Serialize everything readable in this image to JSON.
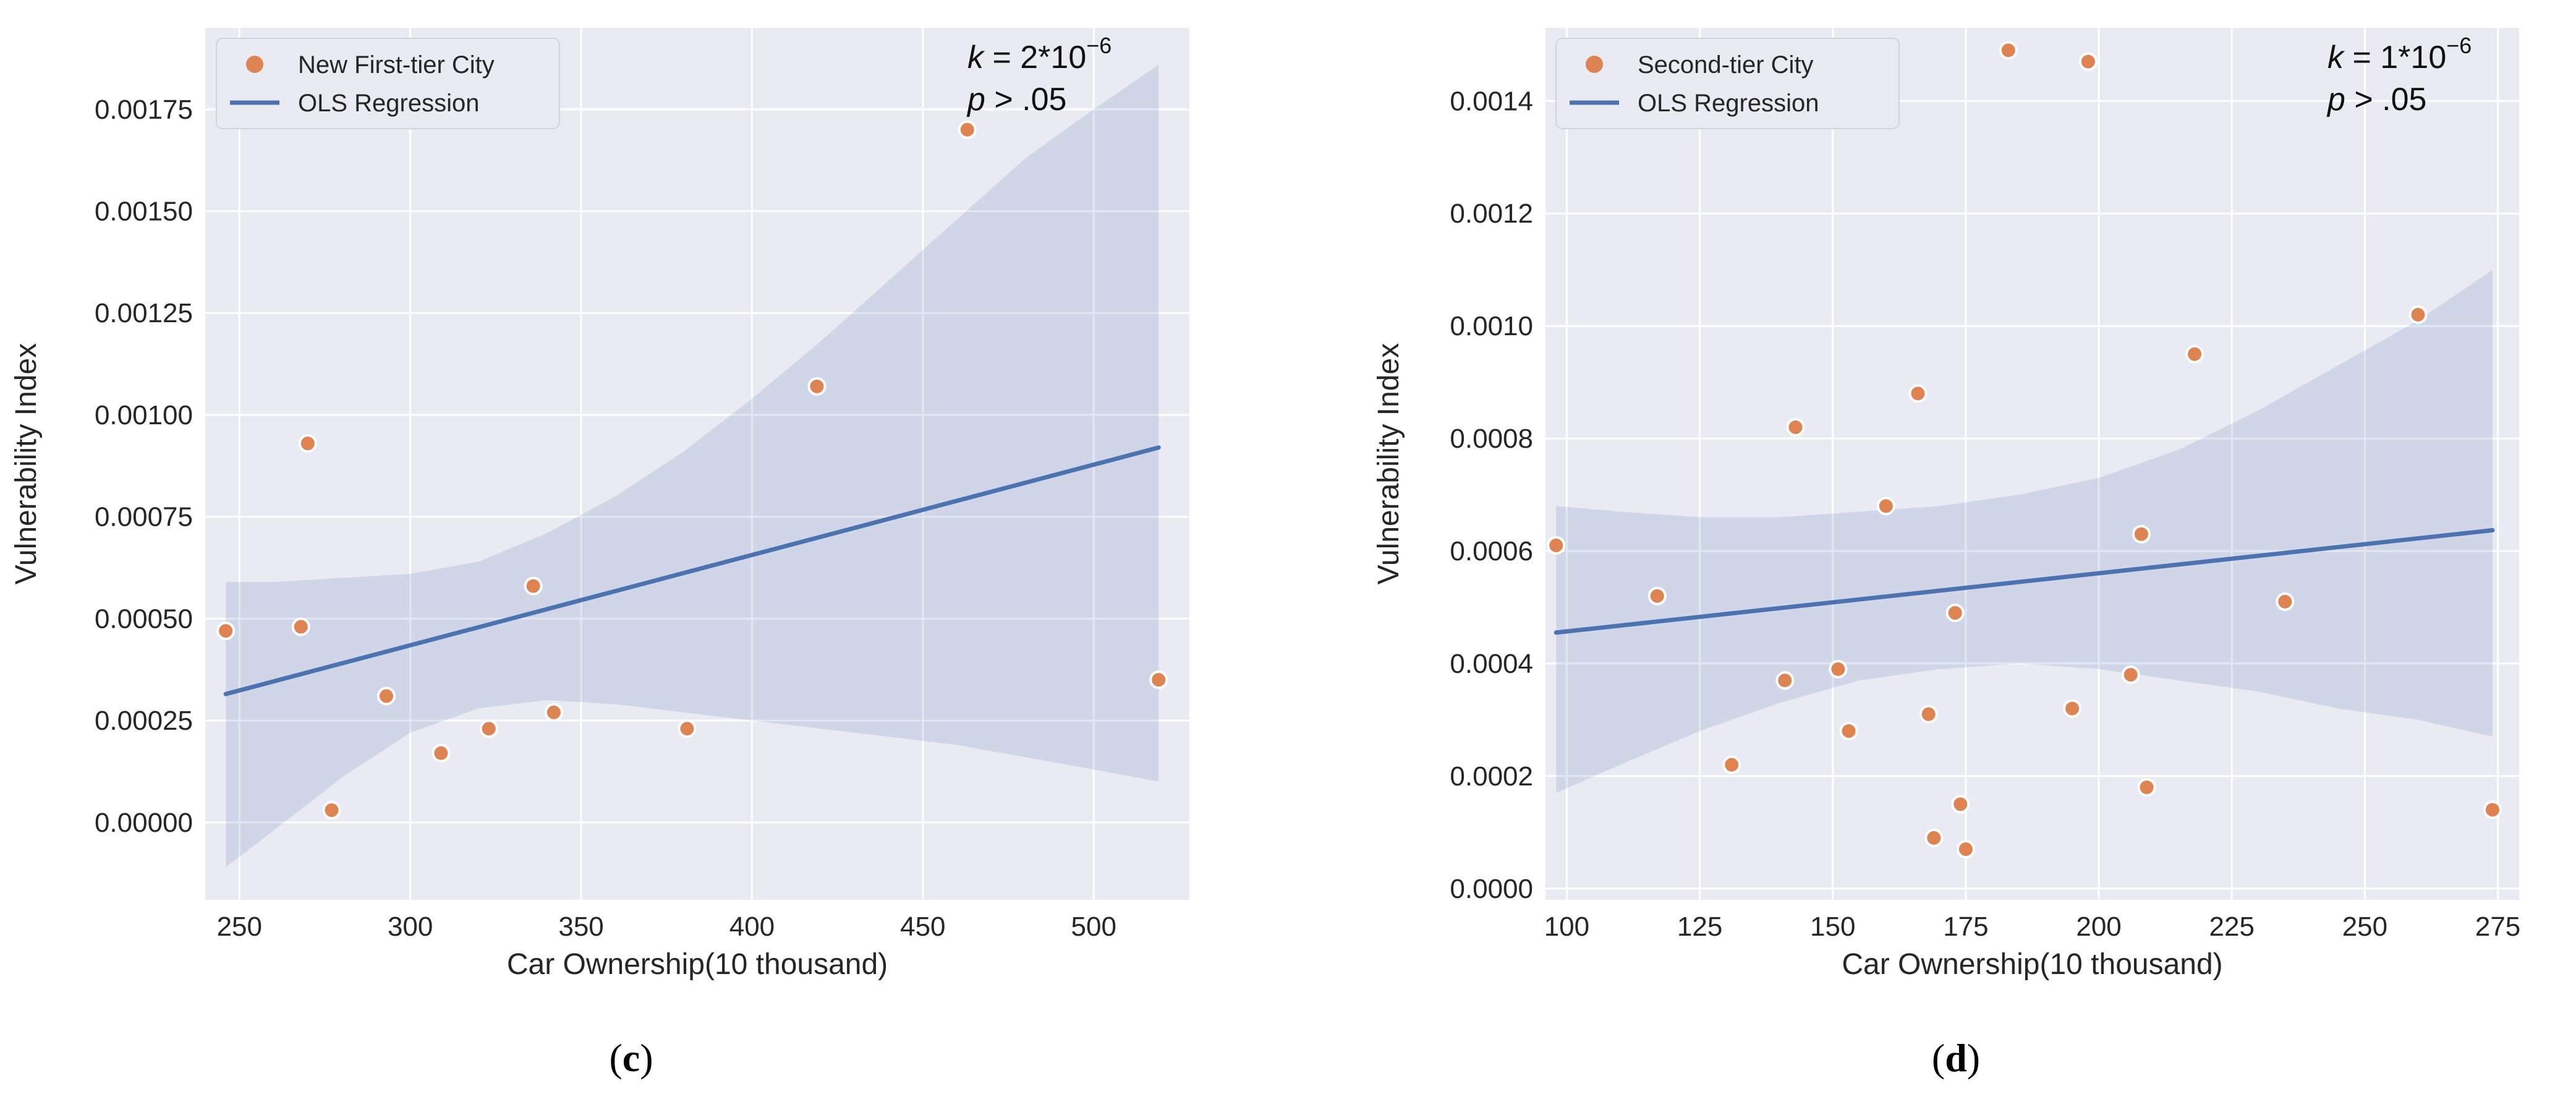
{
  "colors": {
    "background": "#EAEAF2",
    "grid": "#FFFFFF",
    "points": "#DD8452",
    "line": "#4C72B0",
    "band": "#4C72B0"
  },
  "chart_data": [
    {
      "type": "scatter",
      "panel_label": "c",
      "xlabel": "Car Ownership(10 thousand)",
      "ylabel": "Vulnerability Index",
      "xlim": [
        240,
        528
      ],
      "ylim": [
        -0.00019,
        0.00195
      ],
      "xticks": [
        250,
        300,
        350,
        400,
        450,
        500
      ],
      "yticks": [
        0,
        0.00025,
        0.0005,
        0.00075,
        0.001,
        0.00125,
        0.0015,
        0.00175
      ],
      "ytick_labels": [
        "0.00000",
        "0.00025",
        "0.00050",
        "0.00075",
        "0.00100",
        "0.00125",
        "0.00150",
        "0.00175"
      ],
      "grid": true,
      "legend": {
        "position": "top-left",
        "entries": [
          {
            "kind": "marker",
            "label": "New First-tier City"
          },
          {
            "kind": "line",
            "label": "OLS Regression"
          }
        ]
      },
      "stats": {
        "k_prefix": "k",
        "k_value": " = 2*10",
        "k_exp": "−6",
        "p_prefix": "p",
        "p_value": " > .05"
      },
      "series": [
        {
          "name": "New First-tier City",
          "x": [
            246,
            268,
            270,
            277,
            293,
            309,
            323,
            336,
            342,
            381,
            419,
            463,
            519
          ],
          "y": [
            0.00047,
            0.00048,
            0.00093,
            3e-05,
            0.00031,
            0.00017,
            0.00023,
            0.00058,
            0.00027,
            0.00023,
            0.00107,
            0.0017,
            0.00035
          ]
        }
      ],
      "regression": {
        "x": [
          246,
          519
        ],
        "y": [
          0.000315,
          0.00092
        ]
      },
      "confidence_band": {
        "x": [
          246,
          260,
          280,
          300,
          320,
          340,
          360,
          380,
          400,
          420,
          440,
          460,
          480,
          500,
          519
        ],
        "lower": [
          -0.00011,
          -2e-05,
          0.00011,
          0.00022,
          0.00028,
          0.0003,
          0.00029,
          0.00027,
          0.00025,
          0.00023,
          0.00021,
          0.00019,
          0.00016,
          0.00013,
          0.0001
        ],
        "upper": [
          0.00059,
          0.00059,
          0.0006,
          0.00061,
          0.00064,
          0.00071,
          0.0008,
          0.00091,
          0.00104,
          0.00118,
          0.00133,
          0.00148,
          0.00163,
          0.00175,
          0.00186
        ]
      }
    },
    {
      "type": "scatter",
      "panel_label": "d",
      "xlabel": "Car Ownership(10 thousand)",
      "ylabel": "Vulnerability Index",
      "xlim": [
        96,
        279
      ],
      "ylim": [
        -2e-05,
        0.00153
      ],
      "xticks": [
        100,
        125,
        150,
        175,
        200,
        225,
        250,
        275
      ],
      "yticks": [
        0,
        0.0002,
        0.0004,
        0.0006,
        0.0008,
        0.001,
        0.0012,
        0.0014
      ],
      "ytick_labels": [
        "0.0000",
        "0.0002",
        "0.0004",
        "0.0006",
        "0.0008",
        "0.0010",
        "0.0012",
        "0.0014"
      ],
      "grid": true,
      "legend": {
        "position": "top-left",
        "entries": [
          {
            "kind": "marker",
            "label": "Second-tier City"
          },
          {
            "kind": "line",
            "label": "OLS Regression"
          }
        ]
      },
      "stats": {
        "k_prefix": "k",
        "k_value": " = 1*10",
        "k_exp": "−6",
        "p_prefix": "p",
        "p_value": " > .05"
      },
      "series": [
        {
          "name": "Second-tier City",
          "x": [
            98,
            117,
            131,
            141,
            143,
            151,
            153,
            160,
            166,
            168,
            169,
            173,
            174,
            175,
            183,
            195,
            198,
            206,
            208,
            209,
            218,
            235,
            260,
            274
          ],
          "y": [
            0.00061,
            0.00052,
            0.00022,
            0.00037,
            0.00082,
            0.00039,
            0.00028,
            0.00068,
            0.00088,
            0.00031,
            9e-05,
            0.00049,
            0.00015,
            7e-05,
            0.00149,
            0.00032,
            0.00147,
            0.00038,
            0.00063,
            0.00018,
            0.00095,
            0.00051,
            0.00102,
            0.00014
          ]
        }
      ],
      "regression": {
        "x": [
          98,
          274
        ],
        "y": [
          0.000455,
          0.000637
        ]
      },
      "confidence_band": {
        "x": [
          98,
          110,
          125,
          140,
          155,
          170,
          185,
          200,
          215,
          230,
          245,
          260,
          274
        ],
        "lower": [
          0.00017,
          0.00022,
          0.00028,
          0.00033,
          0.00037,
          0.00039,
          0.0004,
          0.00039,
          0.00037,
          0.00035,
          0.00032,
          0.0003,
          0.00027
        ],
        "upper": [
          0.00068,
          0.00067,
          0.00066,
          0.00066,
          0.00067,
          0.00068,
          0.0007,
          0.00073,
          0.00078,
          0.00085,
          0.00093,
          0.00101,
          0.0011
        ]
      }
    }
  ]
}
